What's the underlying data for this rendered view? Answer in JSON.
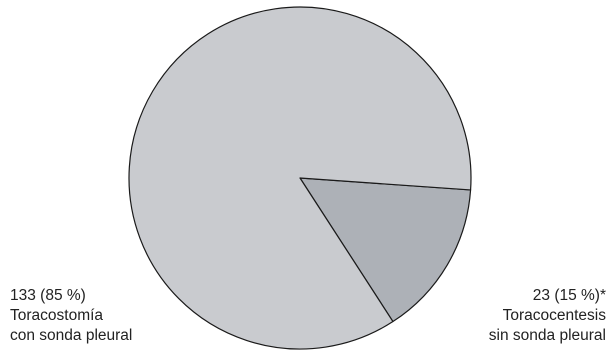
{
  "chart_data": {
    "type": "pie",
    "slices": [
      {
        "value": 133,
        "percent": 85,
        "label_value": "133 (85 %)",
        "label_line1": "Toracostomía",
        "label_line2": "con sonda pleural",
        "color": "#c9cbcf"
      },
      {
        "value": 23,
        "percent": 15,
        "label_value": "23 (15 %)*",
        "label_line1": "Toracocentesis",
        "label_line2": "sin sonda pleural",
        "color": "#adb1b7"
      }
    ],
    "stroke_color": "#1a1a1a",
    "start_angle_deg": 4,
    "direction": "clockwise"
  }
}
